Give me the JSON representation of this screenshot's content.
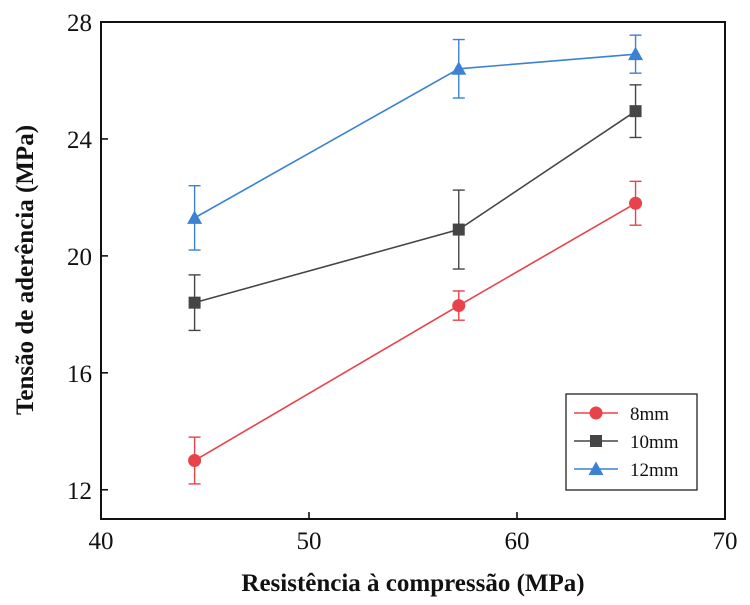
{
  "chart_data": {
    "type": "line",
    "xlabel": "Resistência à compressão (MPa)",
    "ylabel": "Tensão de aderência (MPa)",
    "xlim": [
      40,
      70
    ],
    "ylim": [
      11,
      28
    ],
    "xticks": [
      40,
      50,
      60,
      70
    ],
    "yticks": [
      12,
      16,
      20,
      24,
      28
    ],
    "x": [
      44.5,
      57.2,
      65.7
    ],
    "grid": false,
    "legend_position": "bottom-right",
    "series": [
      {
        "name": "8mm",
        "color": "#e8434a",
        "marker": "circle",
        "values": [
          13.0,
          18.3,
          21.8
        ],
        "error": [
          0.8,
          0.5,
          0.75
        ]
      },
      {
        "name": "10mm",
        "color": "#454545",
        "marker": "square",
        "values": [
          18.4,
          20.9,
          24.95
        ],
        "error": [
          0.95,
          1.35,
          0.9
        ]
      },
      {
        "name": "12mm",
        "color": "#3b82d4",
        "marker": "triangle",
        "values": [
          21.3,
          26.4,
          26.9
        ],
        "error": [
          1.1,
          1.0,
          0.65
        ]
      }
    ]
  }
}
